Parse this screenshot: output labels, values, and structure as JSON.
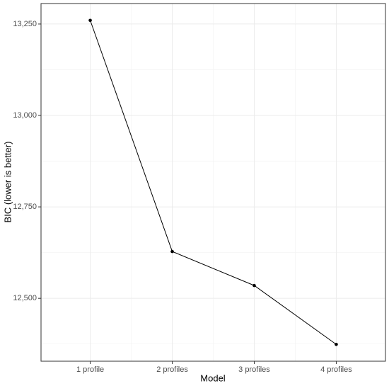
{
  "chart_data": {
    "type": "line",
    "x_label": "Model",
    "y_label": "BIC (lower is better)",
    "categories": [
      "1 profile",
      "2 profiles",
      "3 profiles",
      "4 profiles"
    ],
    "values": [
      13260,
      12628,
      12535,
      12374
    ],
    "color": "#000000",
    "ylim": [
      12328,
      13306
    ],
    "yticks": [
      {
        "value": 12500,
        "label": "12,500"
      },
      {
        "value": 12750,
        "label": "12,750"
      },
      {
        "value": 13000,
        "label": "13,000"
      },
      {
        "value": 13250,
        "label": "13,250"
      }
    ],
    "grid": true
  }
}
